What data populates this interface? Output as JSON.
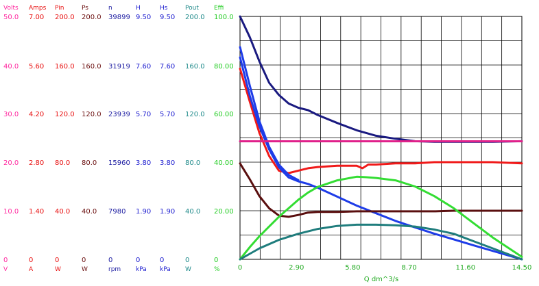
{
  "chart_data": {
    "type": "line",
    "xlabel": "Q  dm^3/s",
    "x_ticks": [
      "0",
      "2.90",
      "5.80",
      "8.70",
      "11.60",
      "14.50"
    ],
    "xlim": [
      0,
      14.5
    ],
    "grid": true,
    "y_axes": [
      {
        "key": "volts",
        "name": "Volts",
        "unit": "V",
        "color": "#ff2aa0",
        "ticks": [
          "50.0",
          "40.0",
          "30.0",
          "20.0",
          "10.0",
          "0"
        ]
      },
      {
        "key": "amps",
        "name": "Amps",
        "unit": "A",
        "color": "#e81010",
        "ticks": [
          "7.00",
          "5.60",
          "4.20",
          "2.80",
          "1.40",
          "0"
        ]
      },
      {
        "key": "pin",
        "name": "Pin",
        "unit": "W",
        "color": "#e81010",
        "ticks": [
          "200.0",
          "160.0",
          "120.0",
          "80.0",
          "40.0",
          "0"
        ]
      },
      {
        "key": "ps",
        "name": "Ps",
        "unit": "W",
        "color": "#6b1010",
        "ticks": [
          "200.0",
          "160.0",
          "120.0",
          "80.0",
          "40.0",
          "0"
        ]
      },
      {
        "key": "n",
        "name": "n",
        "unit": "rpm",
        "color": "#1a1aa0",
        "ticks": [
          "39899",
          "31919",
          "23939",
          "15960",
          "7980",
          "0"
        ]
      },
      {
        "key": "h",
        "name": "H",
        "unit": "kPa",
        "color": "#2020d0",
        "ticks": [
          "9.50",
          "7.60",
          "5.70",
          "3.80",
          "1.90",
          "0"
        ]
      },
      {
        "key": "hs",
        "name": "Hs",
        "unit": "kPa",
        "color": "#2020d0",
        "ticks": [
          "9.50",
          "7.60",
          "5.70",
          "3.80",
          "1.90",
          "0"
        ]
      },
      {
        "key": "pout",
        "name": "Pout",
        "unit": "W",
        "color": "#1f8a8a",
        "ticks": [
          "200.0",
          "160.0",
          "120.0",
          "80.0",
          "40.0",
          "0"
        ]
      },
      {
        "key": "effi",
        "name": "Effi",
        "unit": "%",
        "color": "#22cc22",
        "ticks": [
          "100.0",
          "80.00",
          "60.00",
          "40.00",
          "20.00",
          "0"
        ]
      }
    ],
    "series": [
      {
        "axis": "n",
        "color": "#1a1a80",
        "x": [
          0,
          0.5,
          1,
          1.5,
          2,
          2.5,
          3,
          3.5,
          4,
          5,
          6,
          7,
          8,
          9,
          10,
          11,
          12,
          13,
          14.5
        ],
        "y": [
          39899,
          36500,
          32500,
          29000,
          27000,
          25600,
          24900,
          24500,
          23700,
          22400,
          21200,
          20300,
          19800,
          19400,
          19300,
          19300,
          19300,
          19300,
          19400
        ]
      },
      {
        "axis": "pin",
        "color": "#f01a1a",
        "x": [
          0,
          0.5,
          1,
          1.5,
          2,
          2.5,
          3,
          3.5,
          4,
          5,
          6,
          6.3,
          6.6,
          7,
          8,
          9,
          10,
          11,
          12,
          13,
          14.5
        ],
        "y": [
          157,
          130,
          104,
          85,
          73,
          71,
          73,
          75,
          76,
          77,
          77,
          75,
          78,
          78,
          79,
          79,
          80,
          80,
          80,
          80,
          79
        ]
      },
      {
        "axis": "h",
        "color": "#1e3ce8",
        "x": [
          0,
          0.5,
          1,
          1.5,
          2,
          2.5,
          3,
          3.5,
          4,
          5,
          6,
          7,
          8,
          9,
          10,
          11,
          12,
          13,
          14.5
        ],
        "y": [
          7.9,
          6.4,
          5.2,
          4.3,
          3.6,
          3.2,
          3.05,
          2.95,
          2.8,
          2.45,
          2.1,
          1.8,
          1.5,
          1.25,
          1.0,
          0.78,
          0.55,
          0.33,
          0.0
        ]
      },
      {
        "axis": "hs",
        "color": "#1e3ce8",
        "x": [
          0,
          0.5,
          1,
          1.5,
          2,
          2.5,
          3
        ],
        "y": [
          8.3,
          6.8,
          5.4,
          4.4,
          3.7,
          3.3,
          3.1
        ]
      },
      {
        "axis": "ps",
        "color": "#5a0f0f",
        "x": [
          0,
          0.5,
          1,
          1.5,
          2,
          2.5,
          3,
          3.5,
          4,
          5,
          6,
          7,
          8,
          9,
          10,
          11,
          12,
          13,
          14.5
        ],
        "y": [
          79,
          66,
          52,
          42,
          36,
          35,
          36.5,
          38.5,
          39,
          39,
          39.5,
          39.5,
          39.5,
          39.5,
          39.5,
          40,
          40,
          40,
          40
        ]
      },
      {
        "axis": "volts",
        "color": "#e0208a",
        "x": [
          0,
          14.5
        ],
        "y": [
          24.3,
          24.3
        ]
      },
      {
        "axis": "effi",
        "color": "#33dd33",
        "x": [
          0,
          0.5,
          1,
          1.5,
          2,
          2.5,
          3,
          3.5,
          4,
          5,
          6,
          6.5,
          7,
          8,
          9,
          10,
          11,
          12,
          13,
          14.5
        ],
        "y": [
          0,
          5,
          9.5,
          13.5,
          17.5,
          21,
          24.5,
          27.5,
          29.8,
          32.5,
          34,
          33.8,
          33.5,
          32.5,
          30,
          26,
          21,
          15,
          9,
          1
        ]
      },
      {
        "axis": "pout",
        "color": "#1f7d7d",
        "x": [
          0,
          1,
          2,
          3,
          4,
          5,
          6,
          7,
          8,
          9,
          10,
          11,
          12,
          13,
          14.5
        ],
        "y": [
          0,
          9,
          16,
          21,
          25,
          27.5,
          28.5,
          28.5,
          28,
          27,
          24.5,
          21,
          15,
          9,
          0
        ]
      }
    ]
  }
}
